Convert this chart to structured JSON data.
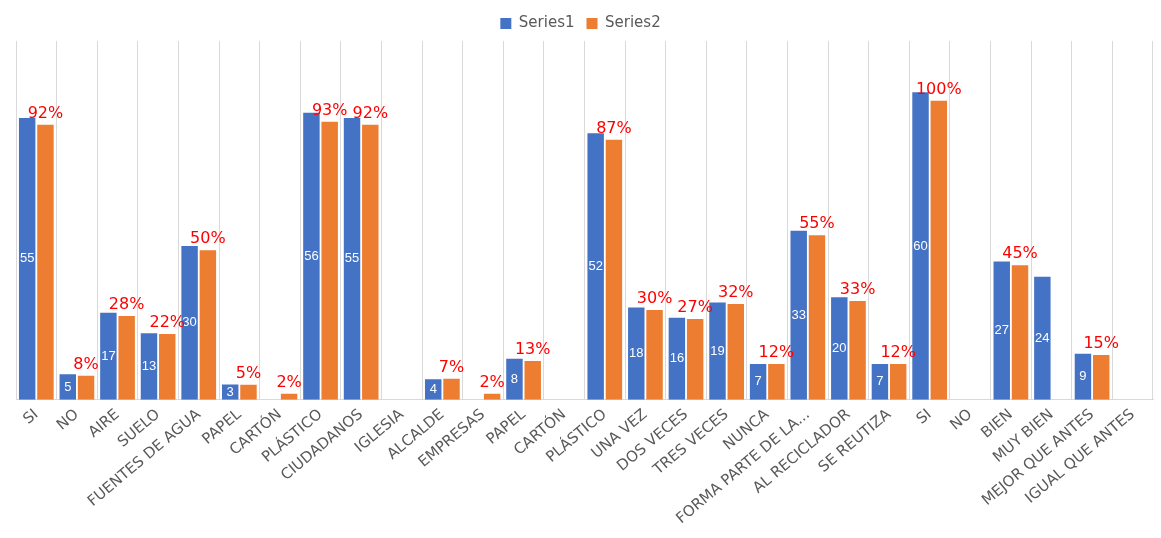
{
  "chart_data": {
    "type": "bar",
    "categories": [
      "SI",
      "NO",
      "AIRE",
      "SUELO",
      "FUENTES DE AGUA",
      "PAPEL",
      "CARTÓN",
      "PLÁSTICO",
      "CIUDADANOS",
      "IGLESIA",
      "ALCALDE",
      "EMPRESAS",
      "PAPEL",
      "CARTÓN",
      "PLÁSTICO",
      "UNA VEZ",
      "DOS VECES",
      "TRES VECES",
      "NUNCA",
      "FORMA PARTE DE LA...",
      "AL RECICLADOR",
      "SE REUTIZA",
      "SI",
      "NO",
      "BIEN",
      "MUY BIEN",
      "MEJOR QUE ANTES",
      "IGUAL QUE ANTES"
    ],
    "series": [
      {
        "name": "Series1",
        "color": "#4472c4",
        "values": [
          55,
          5,
          17,
          13,
          30,
          3,
          null,
          56,
          55,
          null,
          4,
          null,
          8,
          null,
          52,
          18,
          16,
          19,
          7,
          33,
          20,
          7,
          60,
          null,
          27,
          24,
          9,
          null
        ],
        "value_labels": [
          "55",
          "5",
          "17",
          "13",
          "30",
          "3",
          null,
          "56",
          "55",
          null,
          "4",
          null,
          "8",
          null,
          "52",
          "18",
          "16",
          "19",
          "7",
          "33",
          "20",
          "7",
          "60",
          null,
          "27",
          "24",
          "9",
          null
        ]
      },
      {
        "name": "Series2",
        "color": "#ed7d31",
        "axis": "y2",
        "values": [
          0.92,
          0.08,
          0.28,
          0.22,
          0.5,
          0.05,
          0.02,
          0.93,
          0.92,
          null,
          0.07,
          0.02,
          0.13,
          null,
          0.87,
          0.3,
          0.27,
          0.32,
          0.12,
          0.55,
          0.33,
          0.12,
          1,
          null,
          0.45,
          null,
          0.15,
          null
        ],
        "value_labels": [
          "92%",
          "8%",
          "28%",
          "22%",
          "50%",
          "5%",
          "2%",
          "93%",
          "92%",
          null,
          "7%",
          "2%",
          "13%",
          null,
          "87%",
          "30%",
          "27%",
          "32%",
          "12%",
          "55%",
          "33%",
          "12%",
          "100%",
          null,
          "45%",
          null,
          "15%",
          null
        ]
      }
    ],
    "relative": false,
    "grid": "x",
    "legend": "top"
  }
}
